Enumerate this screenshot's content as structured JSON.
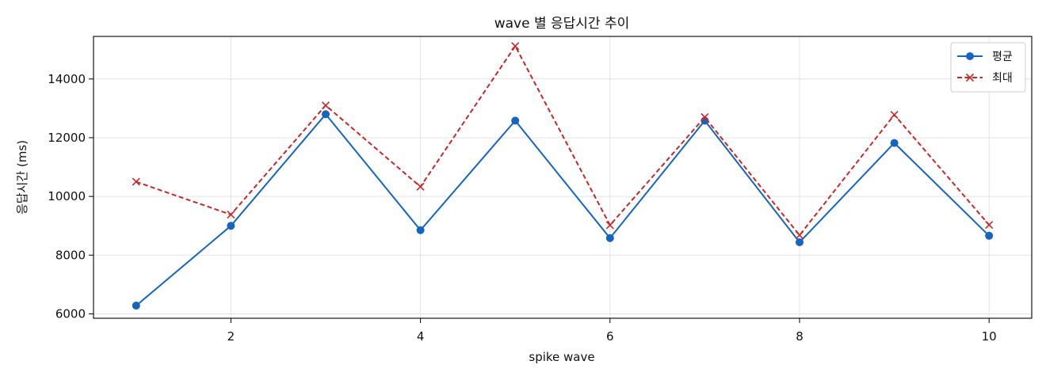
{
  "chart_data": {
    "type": "line",
    "title": "wave 별 응답시간 추이",
    "xlabel": "spike wave",
    "ylabel": "응답시간 (ms)",
    "x": [
      1,
      2,
      3,
      4,
      5,
      6,
      7,
      8,
      9,
      10
    ],
    "xlim": [
      0.55,
      10.45
    ],
    "ylim": [
      5850,
      15450
    ],
    "xticks": [
      2,
      4,
      6,
      8,
      10
    ],
    "yticks": [
      6000,
      8000,
      10000,
      12000,
      14000
    ],
    "grid": true,
    "legend_position": "top-right",
    "series": [
      {
        "name": "평균",
        "color": "#1565c0",
        "line_style": "solid",
        "marker": "circle",
        "values": [
          6280,
          9000,
          12800,
          8850,
          12580,
          8580,
          12580,
          8440,
          11820,
          8660
        ]
      },
      {
        "name": "최대",
        "color": "#c62828",
        "line_style": "dashed",
        "marker": "x",
        "values": [
          10500,
          9380,
          13100,
          10330,
          15120,
          9020,
          12700,
          8680,
          12780,
          9030
        ]
      }
    ]
  }
}
